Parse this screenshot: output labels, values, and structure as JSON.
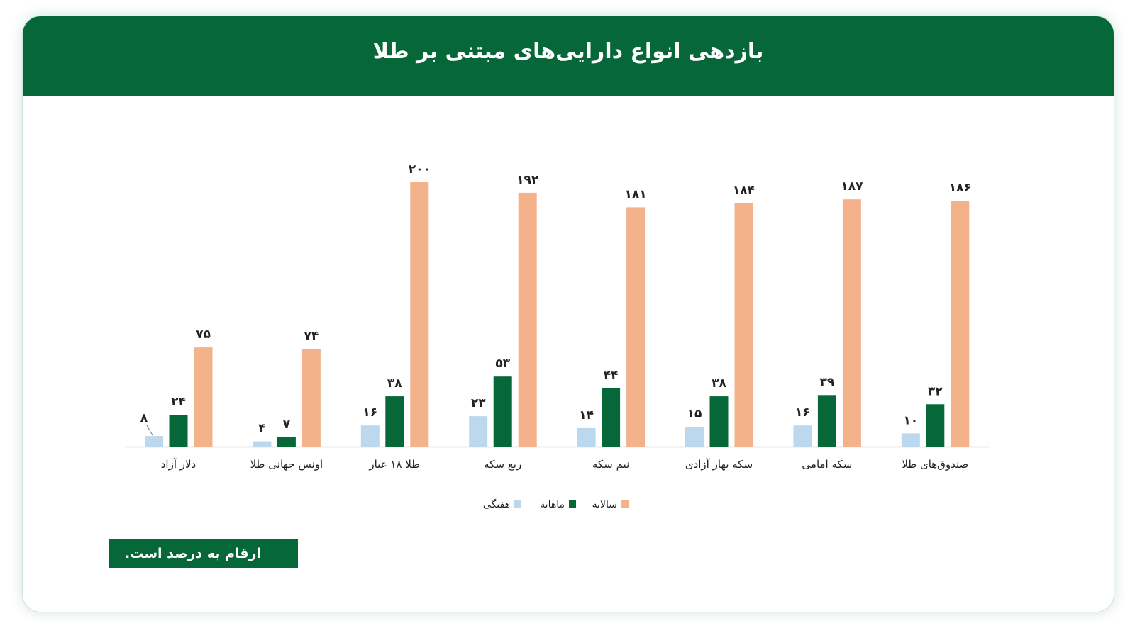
{
  "page": {
    "title": "بازدهی انواع دارایی‌های مبتنی بر طلا",
    "note": "ارقام به درصد است."
  },
  "colors": {
    "header": "#066838",
    "weekly": "#bcd8ee",
    "monthly": "#066838",
    "yearly": "#f3b28a",
    "axis": "#d6d6d6",
    "text": "#222222"
  },
  "chart_data": {
    "type": "bar",
    "title": "بازدهی انواع دارایی‌های مبتنی بر طلا",
    "categories": [
      "دلار آزاد",
      "اونس جهانی طلا",
      "طلا ۱۸ عیار",
      "ربع سکه",
      "نیم سکه",
      "سکه بهار آزادی",
      "سکه امامی",
      "صندوق‌های طلا"
    ],
    "series": [
      {
        "name": "هفتگی",
        "color": "#bcd8ee",
        "values": [
          8,
          4,
          16,
          23,
          14,
          15,
          16,
          10
        ],
        "value_labels": [
          "۸",
          "۴",
          "۱۶",
          "۲۳",
          "۱۴",
          "۱۵",
          "۱۶",
          "۱۰"
        ]
      },
      {
        "name": "ماهانه",
        "color": "#066838",
        "values": [
          24,
          7,
          38,
          53,
          44,
          38,
          39,
          32
        ],
        "value_labels": [
          "۲۴",
          "۷",
          "۳۸",
          "۵۳",
          "۴۴",
          "۳۸",
          "۳۹",
          "۳۲"
        ]
      },
      {
        "name": "سالانه",
        "color": "#f3b28a",
        "values": [
          75,
          74,
          200,
          192,
          181,
          184,
          187,
          186
        ],
        "value_labels": [
          "۷۵",
          "۷۴",
          "۲۰۰",
          "۱۹۲",
          "۱۸۱",
          "۱۸۴",
          "۱۸۷",
          "۱۸۶"
        ]
      }
    ],
    "ylim": [
      0,
      200
    ],
    "grid": false,
    "legend": "bottom-center",
    "legend_order": [
      "سالانه",
      "ماهانه",
      "هفتگی"
    ]
  }
}
